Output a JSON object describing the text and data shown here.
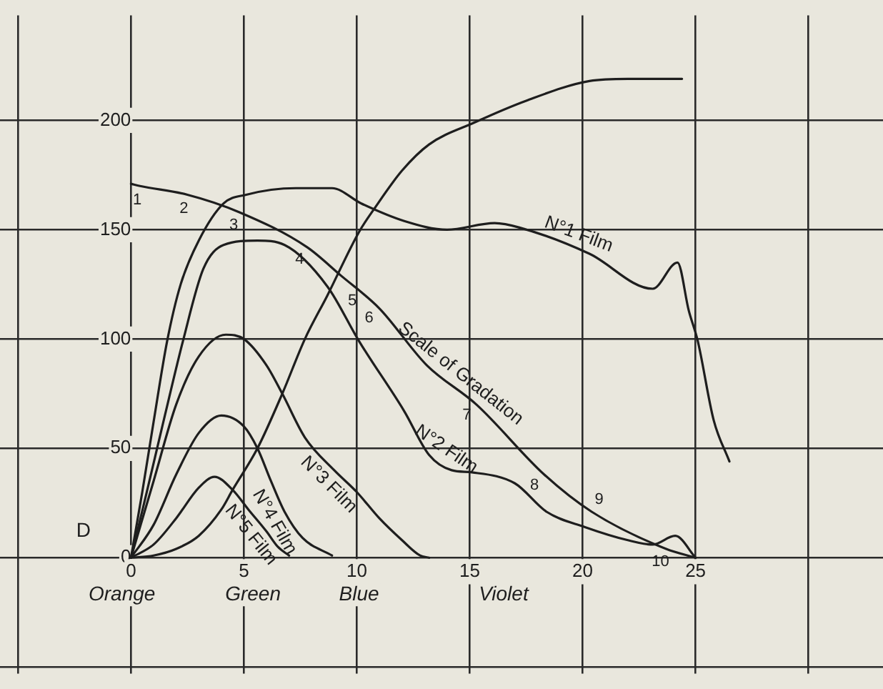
{
  "chart_data": {
    "type": "line",
    "ylabel": "D",
    "xlim": [
      -5.8,
      33.3
    ],
    "ylim": [
      -53,
      248
    ],
    "xticks": [
      {
        "value": -5,
        "label": null
      },
      0,
      5,
      10,
      15,
      20,
      25,
      {
        "value": 30,
        "label": null
      }
    ],
    "yticks": [
      {
        "value": -50,
        "label": null
      },
      0,
      50,
      100,
      150,
      200
    ],
    "grid": true,
    "legend": false,
    "marker": "none",
    "line_style": "solid",
    "series": [
      {
        "name": "N°1 Film",
        "color": "#1e1e1e",
        "x": [
          0,
          0.5,
          1,
          1.6,
          2.2,
          3,
          4.1,
          5.1,
          7.3,
          8.9,
          10.2,
          12.1,
          14,
          16.1,
          17.2,
          20.3,
          23.1,
          24.2,
          24.7,
          25.1,
          25.8,
          26.5
        ],
        "values": [
          0,
          30,
          62,
          99,
          125,
          145,
          162,
          166,
          169,
          169,
          162,
          154,
          150,
          153,
          151,
          139,
          123,
          135,
          113,
          99,
          63,
          44
        ]
      },
      {
        "name": "N°2 Film",
        "color": "#1e1e1e",
        "x": [
          0,
          0.7,
          1.5,
          2.3,
          3.2,
          4.1,
          5.6,
          6.8,
          8.7,
          10.1,
          12.1,
          13.2,
          14.2,
          15.1,
          17,
          18.4,
          20.1,
          22,
          23.1,
          24.1,
          25
        ],
        "values": [
          0,
          30,
          65,
          99,
          132,
          143,
          145,
          143,
          124,
          99,
          67,
          47,
          40,
          39,
          34,
          21,
          14,
          8,
          6,
          10,
          0
        ]
      },
      {
        "name": "N°3 Film",
        "color": "#1e1e1e",
        "x": [
          0,
          1,
          2,
          3,
          4.2,
          5,
          6,
          6.7,
          7.7,
          9,
          10,
          11,
          12,
          12.8,
          13.2
        ],
        "values": [
          0,
          35,
          70,
          92,
          102,
          100,
          88,
          75,
          55,
          40,
          30,
          18,
          8,
          1,
          0
        ]
      },
      {
        "name": "N°4 Film",
        "color": "#1e1e1e",
        "x": [
          0,
          1,
          2,
          3,
          4,
          5,
          5.6,
          6.2,
          6.8,
          7.6,
          8.9
        ],
        "values": [
          0,
          15,
          38,
          57,
          65,
          60,
          50,
          35,
          21,
          9,
          1
        ]
      },
      {
        "name": "N°5 Film",
        "color": "#1e1e1e",
        "x": [
          0,
          1,
          2,
          3,
          3.7,
          4.5,
          5.2,
          6,
          6.5,
          7
        ],
        "values": [
          0,
          6,
          18,
          32,
          37,
          31,
          22,
          12,
          5,
          1
        ]
      },
      {
        "name": "Scale of Gradation",
        "color": "#1e1e1e",
        "x": [
          0,
          0.4,
          2.5,
          4.8,
          7.8,
          9.3,
          11,
          13.1,
          15.3,
          18.3,
          20.4,
          23.7,
          25
        ],
        "values": [
          171,
          170,
          166,
          158,
          142,
          129,
          114,
          88,
          70,
          38,
          21,
          4,
          0
        ]
      },
      {
        "color": "#1e1e1e",
        "x": [
          0,
          1,
          2,
          3,
          4,
          4.5,
          5.6,
          6.7,
          7.7,
          8.7,
          10.1,
          10.8,
          12,
          13.2,
          15.2,
          17.5,
          20.3,
          22,
          24.4
        ],
        "values": [
          0,
          1,
          4,
          10,
          22,
          31,
          50,
          75,
          100,
          120,
          149,
          160,
          177,
          189,
          199,
          209,
          218,
          219,
          219
        ]
      }
    ],
    "annotations": [
      "Orange",
      "Green",
      "Blue",
      "Violet",
      {
        "text": "1",
        "x": 0.4,
        "y": 170
      },
      {
        "text": "2",
        "x": 2.5,
        "y": 166
      },
      {
        "text": "3",
        "x": 4.8,
        "y": 158
      },
      {
        "text": "4",
        "x": 7.8,
        "y": 142
      },
      {
        "text": "5",
        "x": 9.8,
        "y": 124
      },
      {
        "text": "6",
        "x": 11,
        "y": 114
      },
      {
        "text": "7",
        "x": 15.3,
        "y": 70
      },
      {
        "text": "8",
        "x": 18.3,
        "y": 38
      },
      {
        "text": "9",
        "x": 20.4,
        "y": 21
      },
      {
        "text": "10",
        "x": 23.7,
        "y": 4
      }
    ]
  }
}
